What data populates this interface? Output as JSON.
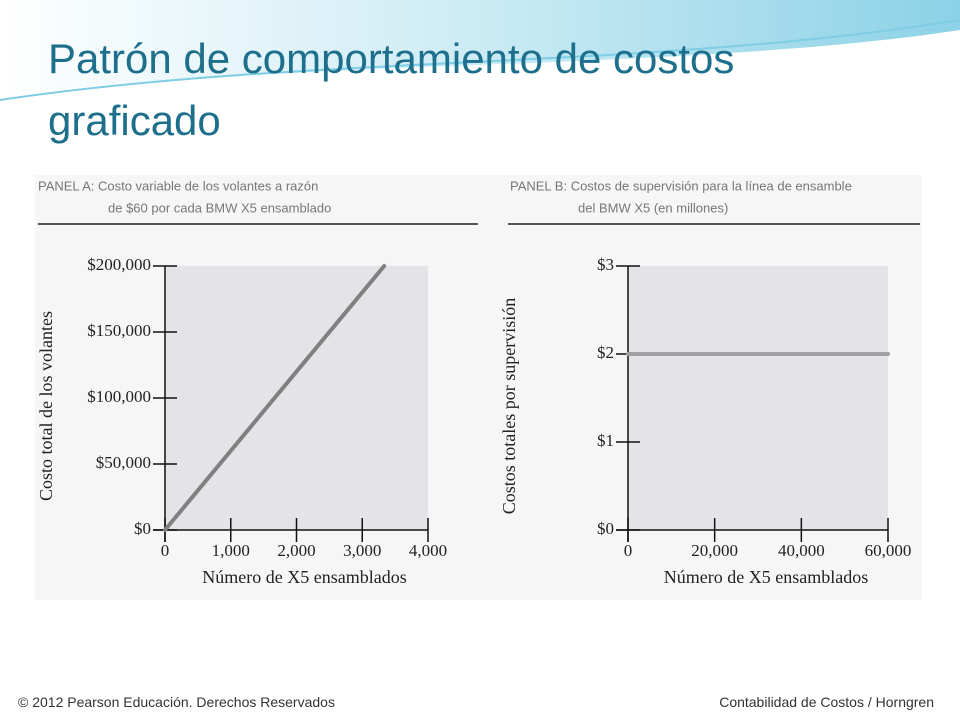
{
  "slide": {
    "title": "Patrón de comportamiento de costos graficado",
    "footer_left": "© 2012 Pearson Educación. Derechos Reservados",
    "footer_right": "Contabilidad de Costos / Horngren"
  },
  "chart_data": [
    {
      "type": "line",
      "title": [
        "PANEL A: Costo variable de los volantes a razón",
        "de $60 por cada BMW X5 ensamblado"
      ],
      "y_label": "Costo total de los volantes",
      "x_label": "Número de X5 ensamblados",
      "x": [
        0,
        3333
      ],
      "series": [
        {
          "color": "#808080",
          "values": [
            0,
            200000
          ]
        }
      ],
      "xlim": [
        0,
        4000
      ],
      "xticks": [
        0,
        {
          "value": 1000,
          "label": "1,000"
        },
        {
          "value": 2000,
          "label": "2,000"
        },
        {
          "value": 3000,
          "label": "3,000"
        },
        {
          "value": 4000,
          "label": "4,000"
        }
      ],
      "ylim": [
        0,
        200000
      ],
      "yticks": [
        {
          "value": 0,
          "label": "$0"
        },
        {
          "value": 50000,
          "label": "$50,000"
        },
        {
          "value": 100000,
          "label": "$100,000"
        },
        {
          "value": 150000,
          "label": "$150,000"
        },
        {
          "value": 200000,
          "label": "$200,000"
        }
      ]
    },
    {
      "type": "line",
      "title": [
        "PANEL B: Costos de supervisión para la línea de ensamble",
        "del BMW X5 (en millones)"
      ],
      "y_label": "Costos totales por supervisión",
      "x_label": "Número de X5 ensamblados",
      "x": [
        0,
        60000
      ],
      "series": [
        {
          "color": "#a0a0a0",
          "values": [
            2,
            2
          ]
        }
      ],
      "xlim": [
        0,
        60000
      ],
      "xticks": [
        0,
        {
          "value": 20000,
          "label": "20,000"
        },
        {
          "value": 40000,
          "label": "40,000"
        },
        {
          "value": 60000,
          "label": "60,000"
        }
      ],
      "ylim": [
        0,
        3
      ],
      "yticks": [
        {
          "value": 0,
          "label": "$0"
        },
        {
          "value": 1,
          "label": "$1"
        },
        {
          "value": 2,
          "label": "$2"
        },
        {
          "value": 3,
          "label": "$3"
        }
      ]
    }
  ]
}
